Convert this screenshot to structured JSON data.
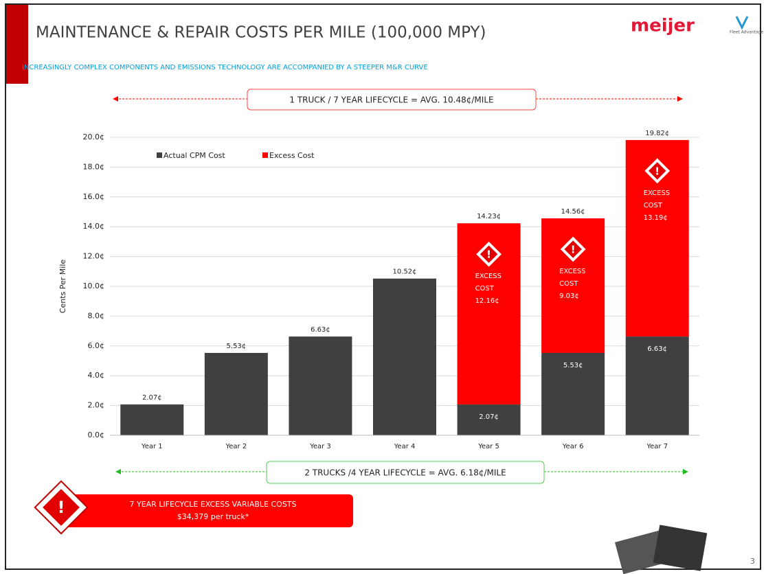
{
  "chart_data": {
    "type": "stacked-bar",
    "title": "MAINTENANCE & REPAIR COSTS PER MILE (100,000 MPY)",
    "subtitle": "INCREASINGLY COMPLEX COMPONENTS AND EMISSIONS TECHNOLOGY ARE ACCOMPANIED BY A STEEPER M&R CURVE",
    "logo": "meijer",
    "logo_partner": "Fleet Advantage",
    "page_number": "3",
    "top_annotation": "1 TRUCK / 7 YEAR LIFECYCLE = AVG. 10.48¢/MILE",
    "bottom_annotation": "2 TRUCKS /4 YEAR LIFECYCLE = AVG. 6.18¢/MILE",
    "callout": [
      "7 YEAR LIFECYCLE EXCESS VARIABLE COSTS",
      "$34,379 per truck*"
    ],
    "excess_text": [
      "EXCESS",
      "COST"
    ],
    "ylabel": "Cents Per Mile",
    "categories": [
      "Year 1",
      "Year 2",
      "Year 3",
      "Year 4",
      "Year 5",
      "Year 6",
      "Year 7"
    ],
    "series": [
      {
        "name": "Actual CPM Cost",
        "color": "#404040",
        "values": [
          2.07,
          5.53,
          6.63,
          10.52,
          2.07,
          5.53,
          6.63
        ],
        "value_labels": [
          "2.07¢",
          "5.53¢",
          "6.63¢",
          "10.52¢",
          "2.07¢",
          "5.53¢",
          "6.63¢"
        ]
      },
      {
        "name": "Excess Cost",
        "color": "#ff0000",
        "values": [
          null,
          null,
          null,
          null,
          12.16,
          9.03,
          13.19
        ],
        "value_labels": [
          null,
          null,
          null,
          null,
          "12.16¢",
          "9.03¢",
          "13.19¢"
        ]
      }
    ],
    "totals": [
      null,
      null,
      null,
      null,
      14.23,
      14.56,
      19.82
    ],
    "total_labels": [
      null,
      null,
      null,
      null,
      "14.23¢",
      "14.56¢",
      "19.82¢"
    ],
    "ylim": [
      0,
      20
    ],
    "yticks": [
      {
        "value": 0,
        "label": "0.0¢"
      },
      {
        "value": 2,
        "label": "2.0¢"
      },
      {
        "value": 4,
        "label": "4.0¢"
      },
      {
        "value": 6,
        "label": "6.0¢"
      },
      {
        "value": 8,
        "label": "8.0¢"
      },
      {
        "value": 10,
        "label": "10.0¢"
      },
      {
        "value": 12,
        "label": "12.0¢"
      },
      {
        "value": 14,
        "label": "14.0¢"
      },
      {
        "value": 16,
        "label": "16.0¢"
      },
      {
        "value": 18,
        "label": "18.0¢"
      },
      {
        "value": 20,
        "label": "20.0¢"
      }
    ],
    "grid": true,
    "legend": "top-left"
  }
}
